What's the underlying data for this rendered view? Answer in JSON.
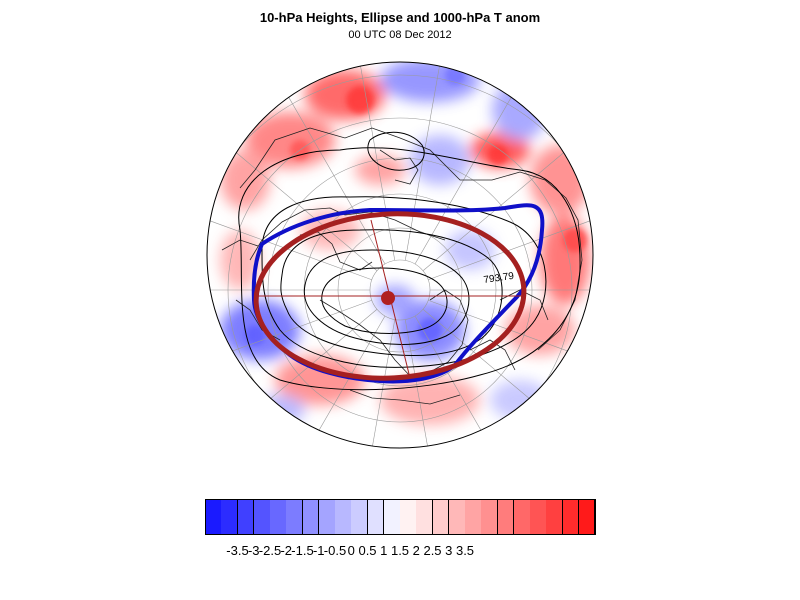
{
  "title": "10-hPa Heights, Ellipse and 1000-hPa T anom",
  "subtitle": "00 UTC 08 Dec 2012",
  "contour_label": "793.79",
  "projection": "north-polar-stereographic",
  "colors": {
    "vortex_edge": "#1010c8",
    "ellipse": "#a52020",
    "ellipse_center": "#b02020",
    "contour": "#000000",
    "coast": "#222222",
    "grid": "#9a9a9a"
  },
  "colorbar": {
    "colors": [
      "#1a1aff",
      "#2c2cff",
      "#4040ff",
      "#5454ff",
      "#6868ff",
      "#7c7cff",
      "#9090ff",
      "#a4a4ff",
      "#b8b8ff",
      "#ccccff",
      "#e0e0ff",
      "#f2f2ff",
      "#fff2f2",
      "#ffe0e0",
      "#ffcccc",
      "#ffb8b8",
      "#ffa4a4",
      "#ff9090",
      "#ff7c7c",
      "#ff6868",
      "#ff5454",
      "#ff4040",
      "#ff2c2c",
      "#ff1a1a"
    ],
    "labels": [
      "-3.5",
      "-3",
      "-2.5",
      "-2",
      "-1.5",
      "-1",
      "-0.5",
      "0",
      "0.5",
      "1",
      "1.5",
      "2",
      "2.5",
      "3",
      "3.5"
    ]
  }
}
